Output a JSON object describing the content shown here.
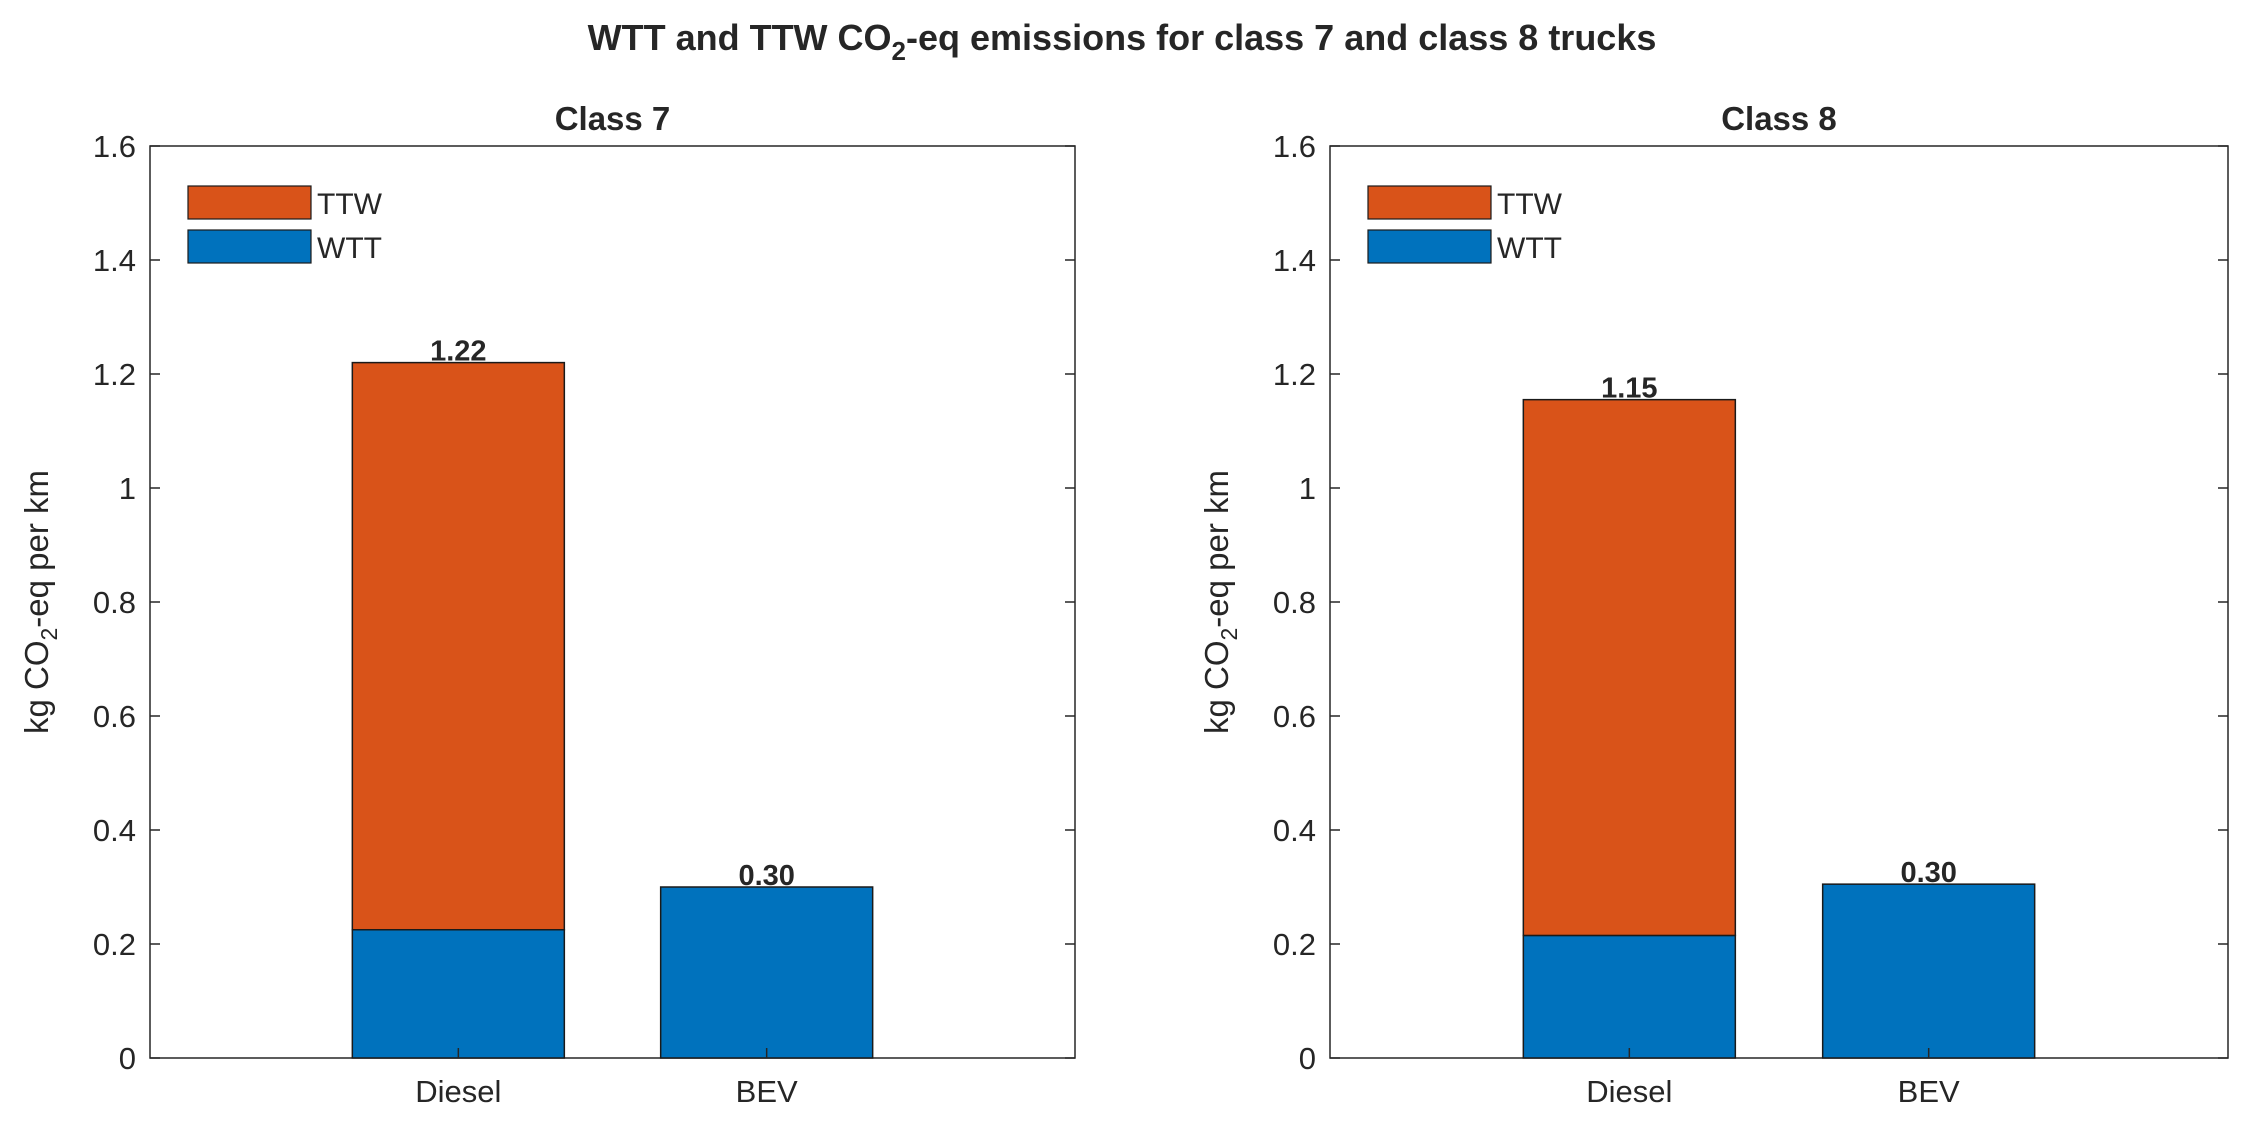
{
  "figure": {
    "title_parts": [
      "WTT and TTW CO",
      "2",
      "-eq emissions for class 7 and class 8 trucks"
    ]
  },
  "colors": {
    "ttw": "#D95319",
    "wtt": "#0072BD",
    "axis": "#262626",
    "text": "#262626"
  },
  "chart_data": [
    {
      "type": "bar",
      "stacked": true,
      "title": "Class 7",
      "categories": [
        "Diesel",
        "BEV"
      ],
      "series": [
        {
          "name": "WTT",
          "values": [
            0.225,
            0.3
          ]
        },
        {
          "name": "TTW",
          "values": [
            0.995,
            0.0
          ]
        }
      ],
      "totals_labels": [
        "1.22",
        "0.30"
      ],
      "ylabel_parts": [
        "kg CO",
        "2",
        "-eq per km"
      ],
      "ylim": [
        0,
        1.6
      ],
      "yticks": [
        0,
        0.2,
        0.4,
        0.6,
        0.8,
        1,
        1.2,
        1.4,
        1.6
      ],
      "ytick_labels": [
        "0",
        "0.2",
        "0.4",
        "0.6",
        "0.8",
        "1",
        "1.2",
        "1.4",
        "1.6"
      ],
      "legend": {
        "position": "top-left",
        "entries": [
          "TTW",
          "WTT"
        ]
      }
    },
    {
      "type": "bar",
      "stacked": true,
      "title": "Class 8",
      "categories": [
        "Diesel",
        "BEV"
      ],
      "series": [
        {
          "name": "WTT",
          "values": [
            0.215,
            0.305
          ]
        },
        {
          "name": "TTW",
          "values": [
            0.94,
            0.0
          ]
        }
      ],
      "totals_labels": [
        "1.15",
        "0.30"
      ],
      "ylabel_parts": [
        "kg CO",
        "2",
        "-eq per km"
      ],
      "ylim": [
        0,
        1.6
      ],
      "yticks": [
        0,
        0.2,
        0.4,
        0.6,
        0.8,
        1,
        1.2,
        1.4,
        1.6
      ],
      "ytick_labels": [
        "0",
        "0.2",
        "0.4",
        "0.6",
        "0.8",
        "1",
        "1.2",
        "1.4",
        "1.6"
      ],
      "legend": {
        "position": "top-left",
        "entries": [
          "TTW",
          "WTT"
        ]
      }
    }
  ]
}
